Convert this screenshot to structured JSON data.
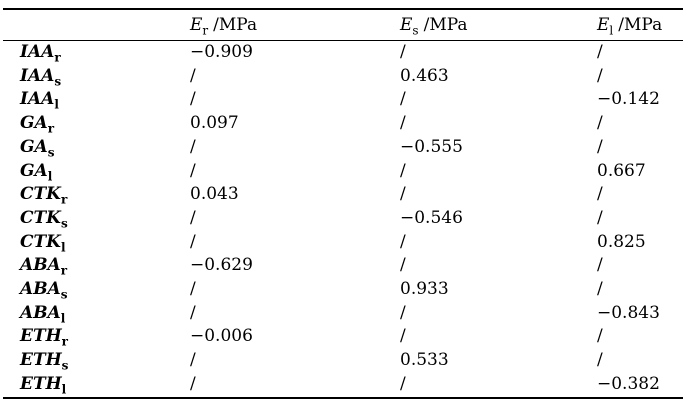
{
  "colors": {
    "text": "#000000",
    "background": "#ffffff",
    "rule": "#000000"
  },
  "table": {
    "columns": [
      {
        "base": "E",
        "sub": "r",
        "unit": "/MPa"
      },
      {
        "base": "E",
        "sub": "s",
        "unit": "/MPa"
      },
      {
        "base": "E",
        "sub": "l",
        "unit": "/MPa"
      }
    ],
    "rows": [
      {
        "label": {
          "base": "IAA",
          "sub": "r"
        },
        "values": [
          "−0.909",
          "/",
          "/"
        ]
      },
      {
        "label": {
          "base": "IAA",
          "sub": "s"
        },
        "values": [
          "/",
          "0.463",
          "/"
        ]
      },
      {
        "label": {
          "base": "IAA",
          "sub": "l"
        },
        "values": [
          "/",
          "/",
          "−0.142"
        ]
      },
      {
        "label": {
          "base": "GA",
          "sub": "r"
        },
        "values": [
          "0.097",
          "/",
          "/"
        ]
      },
      {
        "label": {
          "base": "GA",
          "sub": "s"
        },
        "values": [
          "/",
          "−0.555",
          "/"
        ]
      },
      {
        "label": {
          "base": "GA",
          "sub": "l"
        },
        "values": [
          "/",
          "/",
          "0.667"
        ]
      },
      {
        "label": {
          "base": "CTK",
          "sub": "r"
        },
        "values": [
          "0.043",
          "/",
          "/"
        ]
      },
      {
        "label": {
          "base": "CTK",
          "sub": "s"
        },
        "values": [
          "/",
          "−0.546",
          "/"
        ]
      },
      {
        "label": {
          "base": "CTK",
          "sub": "l"
        },
        "values": [
          "/",
          "/",
          "0.825"
        ]
      },
      {
        "label": {
          "base": "ABA",
          "sub": "r"
        },
        "values": [
          "−0.629",
          "/",
          "/"
        ]
      },
      {
        "label": {
          "base": "ABA",
          "sub": "s"
        },
        "values": [
          "/",
          "0.933",
          "/"
        ]
      },
      {
        "label": {
          "base": "ABA",
          "sub": "l"
        },
        "values": [
          "/",
          "/",
          "−0.843"
        ]
      },
      {
        "label": {
          "base": "ETH",
          "sub": "r"
        },
        "values": [
          "−0.006",
          "/",
          "/"
        ]
      },
      {
        "label": {
          "base": "ETH",
          "sub": "s"
        },
        "values": [
          "/",
          "0.533",
          "/"
        ]
      },
      {
        "label": {
          "base": "ETH",
          "sub": "l"
        },
        "values": [
          "/",
          "/",
          "−0.382"
        ]
      }
    ]
  }
}
